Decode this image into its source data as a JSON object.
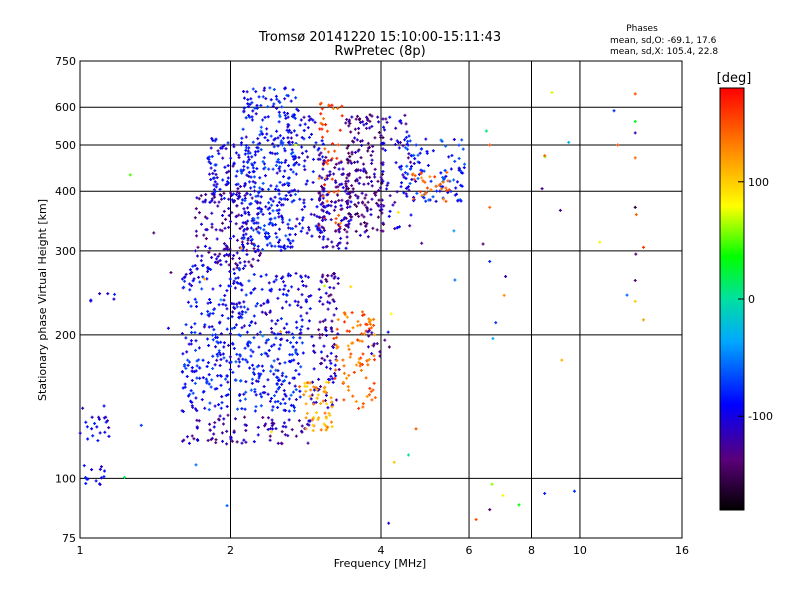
{
  "chart_data": {
    "type": "scatter",
    "title": "Tromsø 20141220 15:10:00-15:11:43",
    "subtitle": "RwPretec (8p)",
    "xlabel": "Frequency [MHz]",
    "ylabel": "Stationary phase Virtual Height [km]",
    "x_scale": "log2",
    "y_scale": "log",
    "xlim": [
      1,
      16
    ],
    "ylim": [
      75,
      750
    ],
    "x_ticks": [
      1,
      2,
      4,
      6,
      8,
      10,
      16
    ],
    "x_tick_labels": [
      "1",
      "2",
      "4",
      "6",
      "8",
      "10",
      "16"
    ],
    "y_ticks": [
      75,
      100,
      200,
      300,
      400,
      500,
      600,
      750
    ],
    "y_tick_labels": [
      "75",
      "100",
      "200",
      "300",
      "400",
      "500",
      "600",
      "750"
    ],
    "grid": true,
    "legend_box": {
      "heading": "Phases",
      "line_o": "mean, sd,O: -69.1, 17.6",
      "line_x": "mean, sd,X: 105.4, 22.8"
    },
    "colorbar": {
      "label": "[deg]",
      "range": [
        -180,
        180
      ],
      "ticks": [
        100,
        0,
        -100
      ],
      "tick_labels": [
        "100",
        "0",
        "-100"
      ]
    },
    "clusters": [
      {
        "f": [
          1.0,
          1.12
        ],
        "h": [
          95,
          108
        ],
        "phase": -95,
        "n": 14
      },
      {
        "f": [
          1.0,
          1.15
        ],
        "h": [
          118,
          142
        ],
        "phase": -95,
        "n": 22
      },
      {
        "f": [
          1.05,
          1.2
        ],
        "h": [
          232,
          246
        ],
        "phase": -100,
        "n": 6
      },
      {
        "f": [
          1.6,
          2.9
        ],
        "h": [
          118,
          136
        ],
        "phase": -120,
        "n": 90
      },
      {
        "f": [
          1.6,
          2.8
        ],
        "h": [
          138,
          200
        ],
        "phase": -85,
        "n": 280
      },
      {
        "f": [
          1.6,
          2.2
        ],
        "h": [
          200,
          285
        ],
        "phase": -90,
        "n": 110
      },
      {
        "f": [
          2.0,
          2.9
        ],
        "h": [
          200,
          270
        ],
        "phase": -95,
        "n": 120
      },
      {
        "f": [
          2.9,
          3.3
        ],
        "h": [
          140,
          200
        ],
        "phase": -110,
        "n": 55
      },
      {
        "f": [
          3.0,
          3.3
        ],
        "h": [
          200,
          270
        ],
        "phase": -125,
        "n": 45
      },
      {
        "f": [
          2.8,
          3.2
        ],
        "h": [
          125,
          160
        ],
        "phase": 115,
        "n": 55
      },
      {
        "f": [
          3.2,
          3.9
        ],
        "h": [
          140,
          225
        ],
        "phase": 140,
        "n": 90
      },
      {
        "f": [
          3.7,
          4.2
        ],
        "h": [
          180,
          205
        ],
        "phase": -120,
        "n": 14
      },
      {
        "f": [
          1.7,
          2.3
        ],
        "h": [
          275,
          400
        ],
        "phase": -120,
        "n": 150
      },
      {
        "f": [
          1.8,
          2.2
        ],
        "h": [
          380,
          520
        ],
        "phase": -100,
        "n": 90
      },
      {
        "f": [
          2.1,
          2.7
        ],
        "h": [
          300,
          660
        ],
        "phase": -85,
        "n": 330
      },
      {
        "f": [
          2.6,
          3.1
        ],
        "h": [
          320,
          600
        ],
        "phase": -100,
        "n": 110
      },
      {
        "f": [
          3.0,
          3.35
        ],
        "h": [
          330,
          620
        ],
        "phase": 150,
        "n": 55
      },
      {
        "f": [
          3.0,
          3.5
        ],
        "h": [
          300,
          480
        ],
        "phase": -120,
        "n": 120
      },
      {
        "f": [
          3.4,
          4.05
        ],
        "h": [
          320,
          580
        ],
        "phase": -130,
        "n": 180
      },
      {
        "f": [
          4.0,
          4.6
        ],
        "h": [
          330,
          580
        ],
        "phase": -110,
        "n": 55
      },
      {
        "f": [
          4.3,
          5.9
        ],
        "h": [
          380,
          520
        ],
        "phase": -80,
        "n": 110
      },
      {
        "f": [
          4.6,
          5.5
        ],
        "h": [
          380,
          440
        ],
        "phase": 140,
        "n": 30
      },
      {
        "f": [
          1.0,
          13.5
        ],
        "h": [
          75,
          660
        ],
        "phase": 0,
        "n": 45
      }
    ],
    "points": [
      {
        "f": 6.2,
        "h": 82,
        "phase": 150
      },
      {
        "f": 6.6,
        "h": 86,
        "phase": -140
      },
      {
        "f": 8.5,
        "h": 93,
        "phase": -80
      },
      {
        "f": 4.7,
        "h": 127,
        "phase": 150
      },
      {
        "f": 9.2,
        "h": 177,
        "phase": 110
      },
      {
        "f": 6.5,
        "h": 535,
        "phase": 10
      },
      {
        "f": 6.6,
        "h": 500,
        "phase": 150
      },
      {
        "f": 6.6,
        "h": 370,
        "phase": 140
      },
      {
        "f": 6.4,
        "h": 310,
        "phase": -140
      },
      {
        "f": 6.6,
        "h": 285,
        "phase": -80
      },
      {
        "f": 7.1,
        "h": 265,
        "phase": -120
      },
      {
        "f": 8.4,
        "h": 405,
        "phase": -130
      },
      {
        "f": 8.5,
        "h": 475,
        "phase": 140
      },
      {
        "f": 11.7,
        "h": 590,
        "phase": -80
      },
      {
        "f": 11.9,
        "h": 500,
        "phase": 150
      },
      {
        "f": 12.9,
        "h": 640,
        "phase": 150
      },
      {
        "f": 12.9,
        "h": 560,
        "phase": 30
      },
      {
        "f": 12.9,
        "h": 530,
        "phase": -120
      },
      {
        "f": 12.9,
        "h": 470,
        "phase": 140
      },
      {
        "f": 12.9,
        "h": 370,
        "phase": -160
      },
      {
        "f": 12.9,
        "h": 260,
        "phase": -140
      },
      {
        "f": 12.9,
        "h": 235,
        "phase": 100
      },
      {
        "f": 13.4,
        "h": 215,
        "phase": 120
      },
      {
        "f": 13.4,
        "h": 305,
        "phase": 160
      }
    ]
  }
}
